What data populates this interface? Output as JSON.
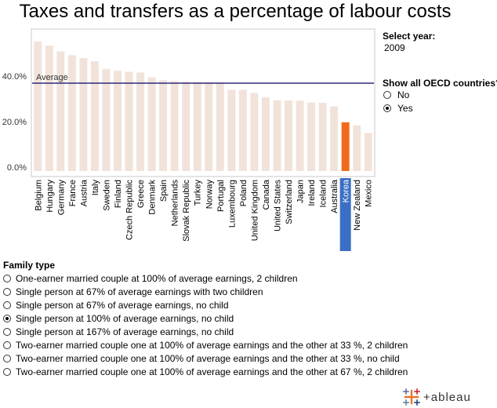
{
  "title": "Taxes and transfers as a percentage of labour costs",
  "controls": {
    "select_year_label": "Select year:",
    "select_year_value": "2009",
    "show_all_label": "Show all OECD countries?",
    "show_all_options": [
      {
        "label": "No",
        "selected": false
      },
      {
        "label": "Yes",
        "selected": true
      }
    ]
  },
  "family": {
    "label": "Family type",
    "options": [
      {
        "label": "One-earner married couple at 100% of average earnings, 2 children",
        "selected": false
      },
      {
        "label": "Single person at 67% of average earnings with two children",
        "selected": false
      },
      {
        "label": "Single person at 67% of average earnings, no child",
        "selected": false
      },
      {
        "label": "Single person at 100% of average earnings, no child",
        "selected": true
      },
      {
        "label": "Single person at 167% of average earnings, no child",
        "selected": false
      },
      {
        "label": "Two-earner married couple one at 100% of average earnings and the other at 33 %, 2 children",
        "selected": false
      },
      {
        "label": "Two-earner married couple one at 100% of average earnings and the other at 33 %, no  child",
        "selected": false
      },
      {
        "label": "Two-earner married couple one at 100% of average earnings and the other at 67 %, 2 children",
        "selected": false
      }
    ]
  },
  "logo_text": "+ableau",
  "colors": {
    "bar": "#f1e3da",
    "highlight_bar": "#f26a1b",
    "highlight_label_bg": "#3b6fc6",
    "average_line": "#2e2a7a",
    "axis": "#999999"
  },
  "chart_data": {
    "type": "bar",
    "categories": [
      "Belgium",
      "Hungary",
      "Germany",
      "France",
      "Austria",
      "Italy",
      "Sweden",
      "Finland",
      "Czech Republic",
      "Greece",
      "Denmark",
      "Spain",
      "Netherlands",
      "Slovak Republic",
      "Turkey",
      "Norway",
      "Portugal",
      "Luxembourg",
      "Poland",
      "United Kingdom",
      "Canada",
      "United States",
      "Switzerland",
      "Japan",
      "Ireland",
      "Iceland",
      "Australia",
      "Korea",
      "New Zealand",
      "Mexico"
    ],
    "values": [
      55.2,
      53.4,
      50.9,
      49.2,
      47.9,
      46.5,
      43.2,
      42.4,
      41.9,
      41.6,
      39.4,
      38.2,
      37.8,
      37.6,
      37.4,
      37.3,
      37.2,
      34.0,
      34.0,
      32.6,
      30.7,
      29.4,
      29.3,
      29.2,
      28.4,
      28.3,
      26.7,
      19.7,
      18.4,
      15.0
    ],
    "highlight": "Korea",
    "average": 36.9,
    "average_label": "Average",
    "yticks": [
      "0.0%",
      "20.0%",
      "40.0%"
    ],
    "ytick_values": [
      0,
      20,
      40
    ],
    "ylim": [
      -3,
      58
    ],
    "grid": false
  }
}
